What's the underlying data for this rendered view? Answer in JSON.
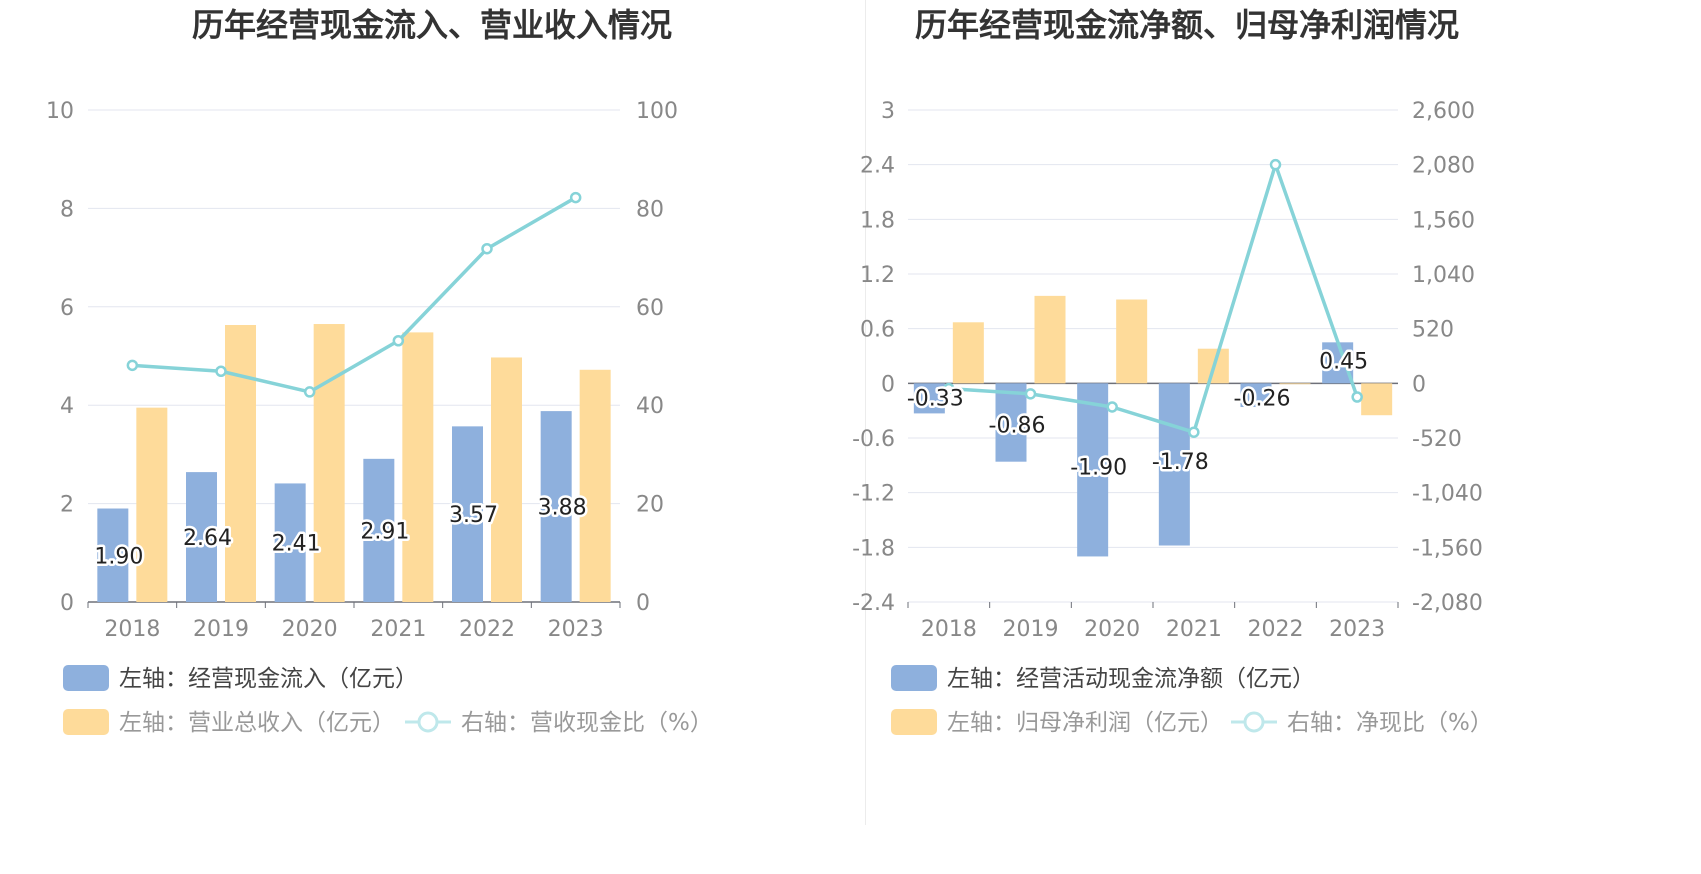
{
  "chart_data": [
    {
      "type": "bar+line",
      "title": "历年经营现金流入、营业收入情况",
      "categories": [
        "2018",
        "2019",
        "2020",
        "2021",
        "2022",
        "2023"
      ],
      "left_axis": {
        "min": 0,
        "max": 10,
        "ticks": [
          "0",
          "2",
          "4",
          "6",
          "8",
          "10"
        ]
      },
      "right_axis": {
        "min": 0,
        "max": 100,
        "ticks": [
          "0",
          "20",
          "40",
          "60",
          "80",
          "100"
        ]
      },
      "series": [
        {
          "name": "左轴：经营现金流入（亿元）",
          "kind": "bar",
          "axis": "left",
          "color": "#8eb0dd",
          "values": [
            1.9,
            2.64,
            2.41,
            2.91,
            3.57,
            3.88
          ],
          "labels": [
            "1.90",
            "2.64",
            "2.41",
            "2.91",
            "3.57",
            "3.88"
          ]
        },
        {
          "name": "左轴：营业总收入（亿元）",
          "kind": "bar",
          "axis": "left",
          "color": "#fedb9a",
          "values": [
            3.95,
            5.63,
            5.65,
            5.48,
            4.97,
            4.72
          ]
        },
        {
          "name": "右轴：营收现金比（%）",
          "kind": "line",
          "axis": "right",
          "color": "#86d3d8",
          "values": [
            48.1,
            46.9,
            42.7,
            53.1,
            71.8,
            82.2
          ]
        }
      ],
      "grid": true,
      "legend_position": "bottom"
    },
    {
      "type": "bar+line",
      "title": "历年经营现金流净额、归母净利润情况",
      "categories": [
        "2018",
        "2019",
        "2020",
        "2021",
        "2022",
        "2023"
      ],
      "left_axis": {
        "min": -2.4,
        "max": 3,
        "ticks": [
          "-2.4",
          "-1.8",
          "-1.2",
          "-0.6",
          "0",
          "0.6",
          "1.2",
          "1.8",
          "2.4",
          "3"
        ]
      },
      "right_axis": {
        "min": -2080,
        "max": 2600,
        "ticks": [
          "-2,080",
          "-1,560",
          "-1,040",
          "-520",
          "0",
          "520",
          "1,040",
          "1,560",
          "2,080",
          "2,600"
        ]
      },
      "series": [
        {
          "name": "左轴：经营活动现金流净额（亿元）",
          "kind": "bar",
          "axis": "left",
          "color": "#8eb0dd",
          "values": [
            -0.33,
            -0.86,
            -1.9,
            -1.78,
            -0.26,
            0.45
          ],
          "labels": [
            "-0.33",
            "-0.86",
            "-1.90",
            "-1.78",
            "-0.26",
            "0.45"
          ]
        },
        {
          "name": "左轴：归母净利润（亿元）",
          "kind": "bar",
          "axis": "left",
          "color": "#fedb9a",
          "values": [
            0.67,
            0.96,
            0.92,
            0.38,
            -0.01,
            -0.35
          ]
        },
        {
          "name": "右轴：净现比（%）",
          "kind": "line",
          "axis": "right",
          "color": "#86d3d8",
          "values": [
            -50,
            -100,
            -225,
            -465,
            2080,
            -130
          ]
        }
      ],
      "grid": true,
      "legend_position": "bottom"
    }
  ]
}
